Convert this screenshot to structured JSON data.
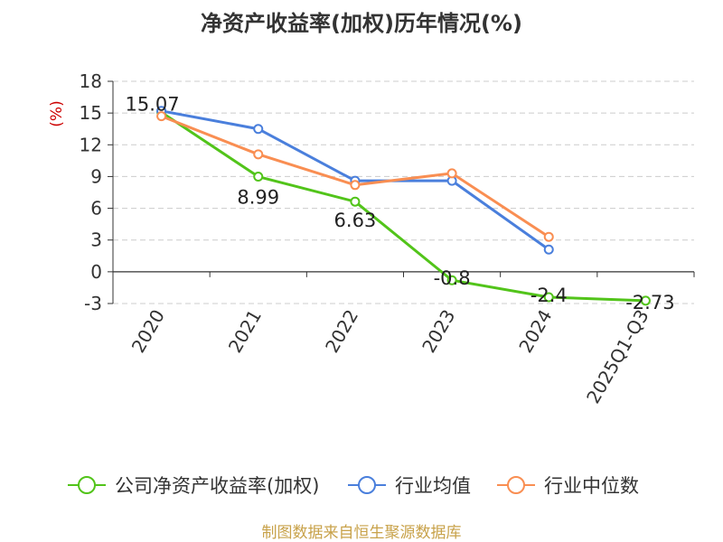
{
  "chart_data": {
    "type": "line",
    "title": "净资产收益率(加权)历年情况(%)",
    "ylabel": "(%)",
    "xlabel": "",
    "categories": [
      "2020",
      "2021",
      "2022",
      "2023",
      "2024",
      "2025Q1-Q3"
    ],
    "ylim": [
      -3,
      18
    ],
    "yticks": [
      -3,
      0,
      3,
      6,
      9,
      12,
      15,
      18
    ],
    "grid": true,
    "legend_position": "bottom",
    "series": [
      {
        "name": "公司净资产收益率(加权)",
        "color": "#52c41a",
        "values": [
          15.07,
          8.99,
          6.63,
          -0.8,
          -2.4,
          -2.73
        ],
        "labels": [
          "15.07",
          "8.99",
          "6.63",
          "-0.8",
          "-2.4",
          "-2.73"
        ]
      },
      {
        "name": "行业均值",
        "color": "#4a7fdc",
        "values": [
          15.2,
          13.5,
          8.6,
          8.6,
          2.1,
          null
        ]
      },
      {
        "name": "行业中位数",
        "color": "#f98e52",
        "values": [
          14.7,
          11.1,
          8.2,
          9.3,
          3.3,
          null
        ]
      }
    ],
    "source": "制图数据来自恒生聚源数据库"
  },
  "colors": {
    "axis": "#333333",
    "grid": "#cccccc",
    "ylabel": "#cc0000",
    "source": "#c8a24a"
  }
}
